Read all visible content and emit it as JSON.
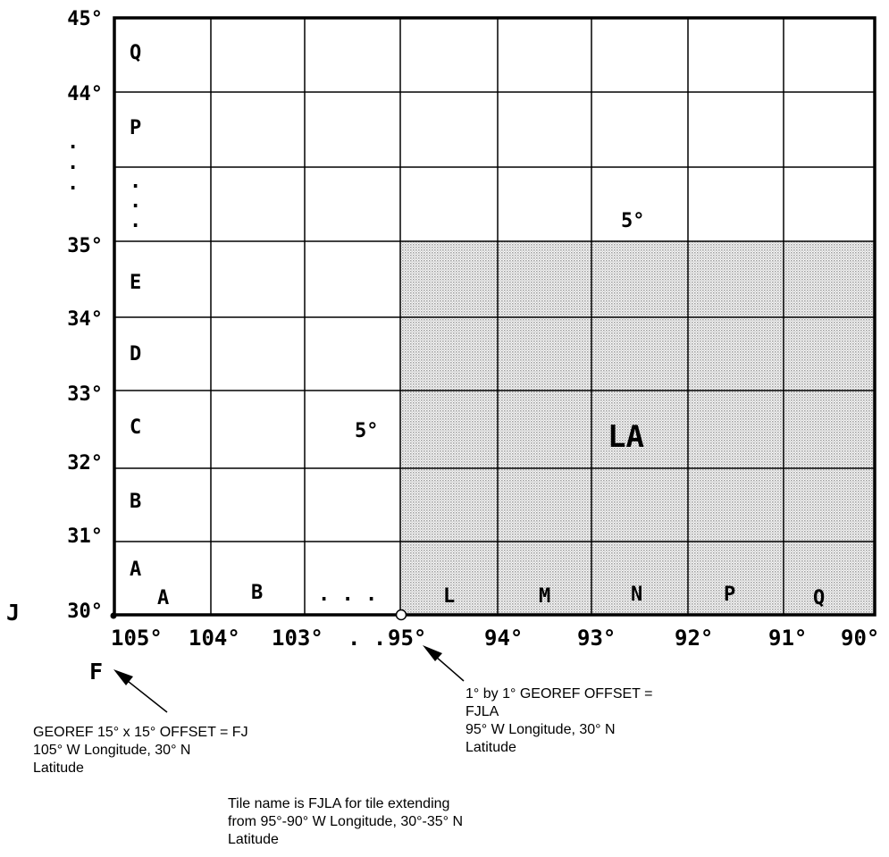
{
  "lat_labels": [
    "45°",
    "44°",
    "35°",
    "34°",
    "33°",
    "32°",
    "31°",
    "30°"
  ],
  "lat_ellipsis": [
    ".",
    ".",
    "."
  ],
  "lon_labels": [
    "105°",
    "104°",
    "103°",
    "95°",
    "94°",
    "93°",
    "92°",
    "91°",
    "90°"
  ],
  "lon_ellipsis": ". .",
  "row_letters": [
    "Q",
    "P",
    "E",
    "D",
    "C",
    "B",
    "A"
  ],
  "row_ellipsis": [
    ".",
    ".",
    "."
  ],
  "col_letters": [
    "A",
    "B",
    "L",
    "M",
    "N",
    "P",
    "Q"
  ],
  "col_ellipsis": ". . .",
  "j_label": "J",
  "f_label": "F",
  "five_deg_top": "5°",
  "five_deg_left": "5°",
  "tile_label": "LA",
  "shade_color": "#a0a0a0",
  "note_georef_15": [
    "GEOREF 15° x 15° OFFSET = FJ",
    "105° W Longitude, 30° N",
    "Latitude"
  ],
  "note_georef_1": [
    "1° by 1° GEOREF OFFSET =",
    "FJLA",
    "95° W Longitude, 30° N",
    "Latitude"
  ],
  "note_tile": [
    "Tile name is FJLA for tile extending",
    "from 95°-90° W Longitude, 30°-35° N",
    "Latitude"
  ]
}
